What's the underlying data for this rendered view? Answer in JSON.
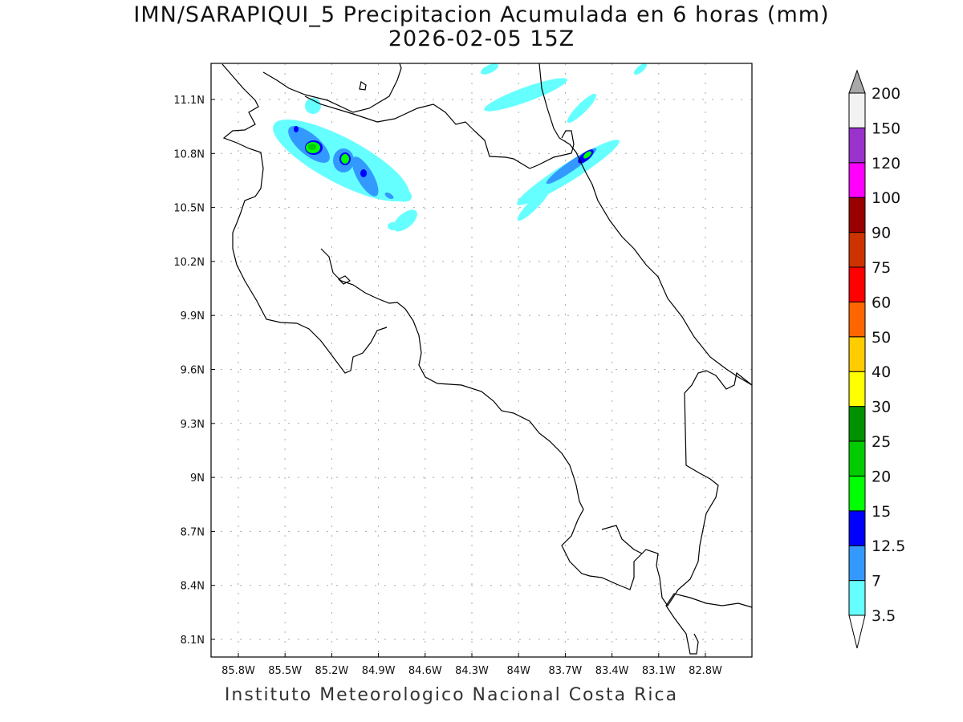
{
  "title": {
    "line1": "IMN/SARAPIQUI_5 Precipitacion Acumulada en 6 horas (mm)",
    "line2": "2026-02-05 15Z"
  },
  "footer": "Instituto Meteorologico Nacional Costa Rica",
  "axes": {
    "x_ticks": [
      "85.8W",
      "85.5W",
      "85.2W",
      "84.9W",
      "84.6W",
      "84.3W",
      "84W",
      "83.7W",
      "83.4W",
      "83.1W",
      "82.8W"
    ],
    "y_ticks": [
      "11.1N",
      "10.8N",
      "10.5N",
      "10.2N",
      "9.9N",
      "9.6N",
      "9.3N",
      "9N",
      "8.7N",
      "8.4N",
      "8.1N"
    ]
  },
  "colorbar": {
    "labels": [
      "3.5",
      "7",
      "12.5",
      "15",
      "20",
      "25",
      "30",
      "40",
      "50",
      "60",
      "75",
      "90",
      "100",
      "120",
      "150",
      "200"
    ],
    "colors": [
      "#66ffff",
      "#3399ff",
      "#0000ff",
      "#00ff00",
      "#00cc00",
      "#009100",
      "#ffff00",
      "#ffcc00",
      "#ff6600",
      "#ff0000",
      "#cc3300",
      "#990000",
      "#ff00ff",
      "#9933cc",
      "#f2f2f2"
    ],
    "over_color": "#a8a8a8",
    "under_color": "#ffffff"
  }
}
